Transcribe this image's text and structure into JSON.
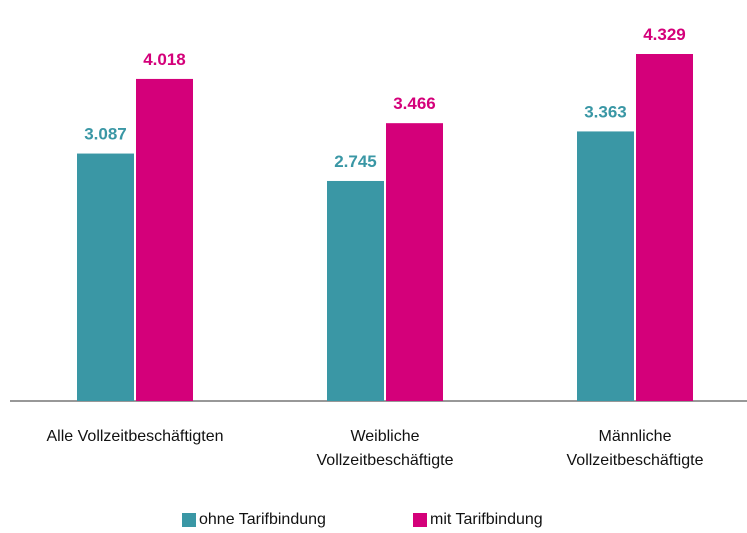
{
  "chart_data": {
    "type": "bar",
    "categories": [
      "Alle Vollzeitbeschäftigten",
      "Weibliche\nVollzeitbeschäftigte",
      "Männliche\nVollzeitbeschäftigte"
    ],
    "series": [
      {
        "name": "ohne Tarifbindung",
        "color": "#3a97a5",
        "values": [
          3087,
          2745,
          3363
        ],
        "value_labels": [
          "3.087",
          "2.745",
          "3.363"
        ]
      },
      {
        "name": "mit Tarifbindung",
        "color": "#d4007a",
        "values": [
          4018,
          3466,
          4329
        ],
        "value_labels": [
          "4.018",
          "3.466",
          "4.329"
        ]
      }
    ],
    "legend": "bottom"
  }
}
